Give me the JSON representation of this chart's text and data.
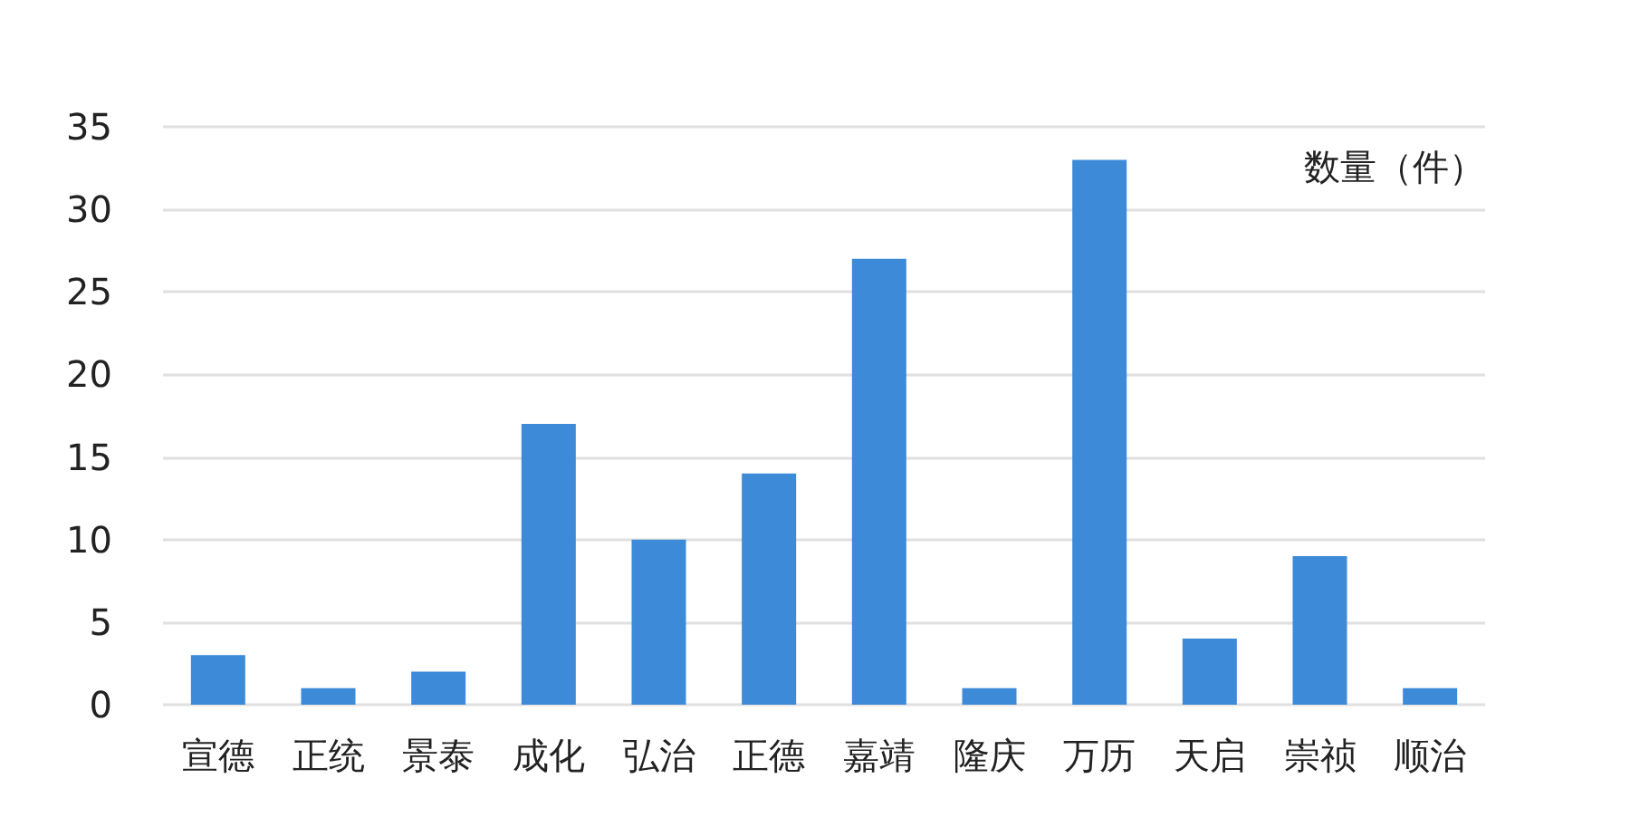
{
  "chart_data": {
    "type": "bar",
    "ylabel": "数量（件）",
    "categories": [
      "宣德",
      "正统",
      "景泰",
      "成化",
      "弘治",
      "正德",
      "嘉靖",
      "隆庆",
      "万历",
      "天启",
      "崇祯",
      "顺治"
    ],
    "values": [
      3,
      1,
      2,
      17,
      10,
      14,
      27,
      1,
      33,
      4,
      9,
      1
    ],
    "color": "#3d8ad8",
    "ylim": [
      0,
      35
    ],
    "yticks": [
      0,
      5,
      10,
      15,
      20,
      25,
      30,
      35
    ],
    "grid": "y"
  }
}
